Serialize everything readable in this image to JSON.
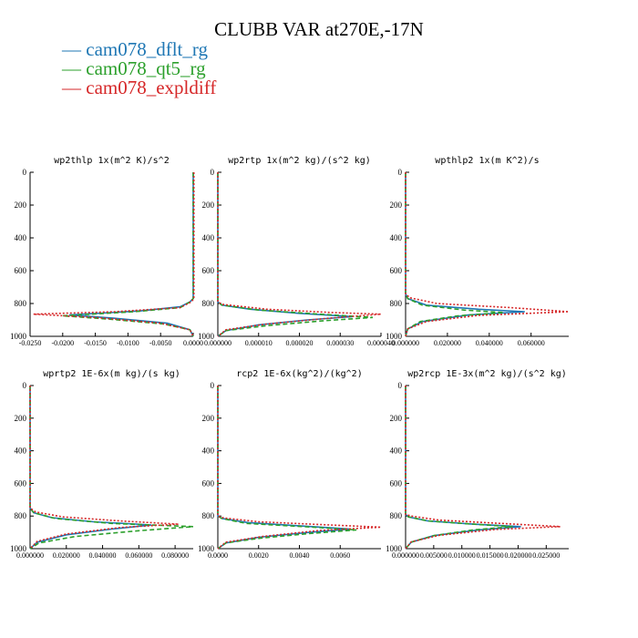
{
  "title": "CLUBB VAR at270E,-17N",
  "legend": [
    {
      "label": "cam078_dflt_rg",
      "color": "#1f77b4"
    },
    {
      "label": "cam078_qt5_rg",
      "color": "#2ca02c"
    },
    {
      "label": "cam078_expldiff",
      "color": "#d62728"
    }
  ],
  "chart_data": [
    {
      "type": "line",
      "title": "wp2thlp  1x(m^2 K)/s^2",
      "xlim": [
        -0.025,
        0.0
      ],
      "ylim": [
        1000,
        0
      ],
      "xticks": [
        "-0.0250",
        "-0.0200",
        "-0.0150",
        "-0.0100",
        "-0.0050",
        "0.0000"
      ],
      "yticks": [
        "0",
        "200",
        "400",
        "600",
        "800",
        "1000"
      ],
      "series": [
        {
          "name": "cam078_dflt_rg",
          "x": [
            0,
            0,
            -0.0005,
            -0.002,
            -0.008,
            -0.019,
            -0.012,
            -0.004,
            -0.0005,
            0
          ],
          "y": [
            0,
            770,
            790,
            820,
            845,
            870,
            890,
            920,
            960,
            1000
          ]
        },
        {
          "name": "cam078_qt5_rg",
          "x": [
            0,
            0,
            -0.0005,
            -0.002,
            -0.009,
            -0.02,
            -0.013,
            -0.0045,
            -0.0005,
            0
          ],
          "y": [
            0,
            770,
            790,
            825,
            850,
            875,
            895,
            925,
            960,
            1000
          ]
        },
        {
          "name": "cam078_expldiff",
          "x": [
            0.0001,
            0.0001,
            -0.0003,
            -0.002,
            -0.012,
            -0.0245,
            -0.015,
            -0.005,
            -0.0005,
            0
          ],
          "y": [
            0,
            770,
            790,
            825,
            850,
            865,
            885,
            920,
            960,
            1000
          ]
        }
      ]
    },
    {
      "type": "line",
      "title": "wp2rtp  1x(m^2 kg)/(s^2 kg)",
      "xlim": [
        0.0,
        4e-05
      ],
      "ylim": [
        1000,
        0
      ],
      "xticks": [
        "0.000000",
        "0.000010",
        "0.000020",
        "0.000030",
        "0.000040"
      ],
      "yticks": [
        "0",
        "200",
        "400",
        "600",
        "800",
        "1000"
      ],
      "series": [
        {
          "name": "cam078_dflt_rg",
          "x": [
            0,
            0,
            1e-06,
            8e-06,
            2e-05,
            3.3e-05,
            2.2e-05,
            1e-05,
            2e-06,
            0
          ],
          "y": [
            0,
            790,
            810,
            835,
            860,
            880,
            900,
            930,
            965,
            1000
          ]
        },
        {
          "name": "cam078_qt5_rg",
          "x": [
            0,
            0,
            1e-06,
            1e-05,
            2.5e-05,
            3.8e-05,
            2.6e-05,
            1.2e-05,
            2e-06,
            0
          ],
          "y": [
            0,
            790,
            810,
            840,
            865,
            885,
            905,
            935,
            965,
            1000
          ]
        },
        {
          "name": "cam078_expldiff",
          "x": [
            0,
            0,
            1e-06,
            1.2e-05,
            2.8e-05,
            4e-05,
            2.7e-05,
            1.2e-05,
            2e-06,
            0
          ],
          "y": [
            0,
            790,
            805,
            835,
            855,
            865,
            890,
            925,
            960,
            1000
          ]
        }
      ]
    },
    {
      "type": "line",
      "title": "wpthlp2  1x(m K^2)/s",
      "xlim": [
        0.0,
        0.078
      ],
      "ylim": [
        1000,
        0
      ],
      "xticks": [
        "0.000000",
        "0.020000",
        "0.040000",
        "0.060000"
      ],
      "yticks": [
        "0",
        "200",
        "400",
        "600",
        "800",
        "1000"
      ],
      "series": [
        {
          "name": "cam078_dflt_rg",
          "x": [
            0,
            0,
            0.001,
            0.01,
            0.035,
            0.057,
            0.03,
            0.008,
            0.001,
            0
          ],
          "y": [
            0,
            740,
            770,
            810,
            835,
            850,
            870,
            910,
            955,
            1000
          ]
        },
        {
          "name": "cam078_qt5_rg",
          "x": [
            0,
            0,
            0.001,
            0.008,
            0.028,
            0.047,
            0.025,
            0.007,
            0.001,
            0
          ],
          "y": [
            0,
            740,
            770,
            810,
            840,
            855,
            875,
            910,
            955,
            1000
          ]
        },
        {
          "name": "cam078_expldiff",
          "x": [
            0,
            0,
            0.002,
            0.015,
            0.05,
            0.078,
            0.035,
            0.01,
            0.001,
            0
          ],
          "y": [
            0,
            740,
            765,
            800,
            825,
            850,
            872,
            910,
            955,
            1000
          ]
        }
      ]
    },
    {
      "type": "line",
      "title": "wprtp2  1E-6x(m kg)/(s kg)",
      "xlim": [
        0.0,
        0.09
      ],
      "ylim": [
        1000,
        0
      ],
      "xticks": [
        "0.000000",
        "0.020000",
        "0.040000",
        "0.060000",
        "0.080000"
      ],
      "yticks": [
        "0",
        "200",
        "400",
        "600",
        "800",
        "1000"
      ],
      "series": [
        {
          "name": "cam078_dflt_rg",
          "x": [
            0,
            0,
            0.002,
            0.012,
            0.035,
            0.067,
            0.045,
            0.02,
            0.004,
            0
          ],
          "y": [
            0,
            750,
            780,
            810,
            835,
            855,
            880,
            915,
            960,
            1000
          ]
        },
        {
          "name": "cam078_qt5_rg",
          "x": [
            0,
            0,
            0.002,
            0.014,
            0.045,
            0.09,
            0.06,
            0.025,
            0.005,
            0
          ],
          "y": [
            0,
            750,
            780,
            815,
            845,
            865,
            890,
            925,
            965,
            1000
          ]
        },
        {
          "name": "cam078_expldiff",
          "x": [
            0,
            0,
            0.003,
            0.018,
            0.05,
            0.082,
            0.05,
            0.02,
            0.004,
            0
          ],
          "y": [
            0,
            750,
            775,
            805,
            830,
            850,
            870,
            910,
            955,
            1000
          ]
        }
      ]
    },
    {
      "type": "line",
      "title": "rcp2  1E-6x(kg^2)/(kg^2)",
      "xlim": [
        0.0,
        0.008
      ],
      "ylim": [
        1000,
        0
      ],
      "xticks": [
        "0.0000",
        "0.0020",
        "0.0040",
        "0.0060"
      ],
      "yticks": [
        "0",
        "200",
        "400",
        "600",
        "800",
        "1000"
      ],
      "series": [
        {
          "name": "cam078_dflt_rg",
          "x": [
            0,
            0,
            0.0002,
            0.0015,
            0.004,
            0.0065,
            0.0045,
            0.002,
            0.0004,
            0
          ],
          "y": [
            0,
            800,
            815,
            840,
            860,
            880,
            900,
            930,
            965,
            1000
          ]
        },
        {
          "name": "cam078_qt5_rg",
          "x": [
            0,
            0,
            0.0002,
            0.0014,
            0.0042,
            0.0068,
            0.0047,
            0.0021,
            0.0004,
            0
          ],
          "y": [
            0,
            800,
            815,
            845,
            865,
            885,
            905,
            935,
            965,
            1000
          ]
        },
        {
          "name": "cam078_expldiff",
          "x": [
            0,
            0,
            0.0003,
            0.002,
            0.0055,
            0.008,
            0.005,
            0.0022,
            0.0004,
            0
          ],
          "y": [
            0,
            800,
            812,
            835,
            855,
            868,
            888,
            925,
            960,
            1000
          ]
        }
      ]
    },
    {
      "type": "line",
      "title": "wp2rcp  1E-3x(m^2 kg)/(s^2 kg)",
      "xlim": [
        0.0,
        0.029
      ],
      "ylim": [
        1000,
        0
      ],
      "xticks": [
        "0.000000",
        "0.005000",
        "0.010000",
        "0.015000",
        "0.020000",
        "0.025000"
      ],
      "yticks": [
        "0",
        "200",
        "400",
        "600",
        "800",
        "1000"
      ],
      "series": [
        {
          "name": "cam078_dflt_rg",
          "x": [
            0,
            0,
            0.0005,
            0.004,
            0.012,
            0.0205,
            0.013,
            0.005,
            0.001,
            0
          ],
          "y": [
            0,
            790,
            805,
            830,
            850,
            865,
            885,
            920,
            960,
            1000
          ]
        },
        {
          "name": "cam078_qt5_rg",
          "x": [
            0,
            0,
            0.0005,
            0.004,
            0.012,
            0.019,
            0.012,
            0.005,
            0.001,
            0
          ],
          "y": [
            0,
            790,
            805,
            830,
            850,
            865,
            885,
            920,
            960,
            1000
          ]
        },
        {
          "name": "cam078_expldiff",
          "x": [
            0,
            0,
            0.001,
            0.006,
            0.017,
            0.0275,
            0.016,
            0.006,
            0.001,
            0
          ],
          "y": [
            0,
            790,
            800,
            825,
            845,
            865,
            882,
            918,
            958,
            1000
          ]
        }
      ]
    }
  ]
}
